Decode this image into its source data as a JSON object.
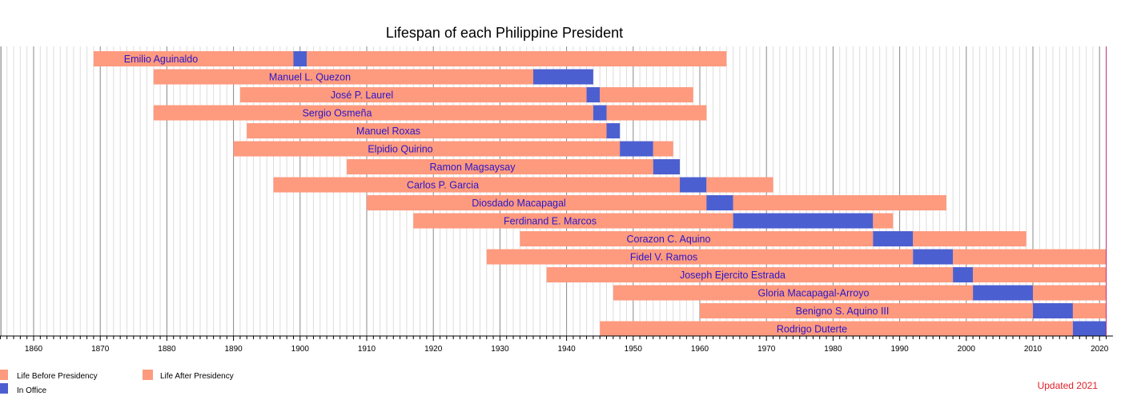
{
  "chart_data": {
    "type": "timeline",
    "title": "Lifespan of each Philippine President",
    "xlim": [
      1855,
      2021.5
    ],
    "x_ticks": [
      1860,
      1870,
      1880,
      1890,
      1900,
      1910,
      1920,
      1930,
      1940,
      1950,
      1960,
      1970,
      1980,
      1990,
      2000,
      2010,
      2020
    ],
    "series_colors": {
      "before": "#fe9a7e",
      "office": "#4c5fd0",
      "after": "#fe9a7e"
    },
    "label_color": "#2a16c8",
    "note_color": "#e0202a",
    "legend": {
      "placement": "bottom-left",
      "items": [
        "Life Before Presidency",
        "Life After Presidency",
        "In Office"
      ]
    },
    "note": "Updated 2021",
    "presidents": [
      {
        "name": "Emilio Aguinaldo",
        "born": 1869,
        "office_start": 1899,
        "office_end": 1901,
        "end": 1964
      },
      {
        "name": "Manuel L. Quezon",
        "born": 1878,
        "office_start": 1935,
        "office_end": 1944,
        "end": 1944
      },
      {
        "name": "José P. Laurel",
        "born": 1891,
        "office_start": 1943,
        "office_end": 1945,
        "end": 1959
      },
      {
        "name": "Sergio Osmeña",
        "born": 1878,
        "office_start": 1944,
        "office_end": 1946,
        "end": 1961
      },
      {
        "name": "Manuel Roxas",
        "born": 1892,
        "office_start": 1946,
        "office_end": 1948,
        "end": 1948
      },
      {
        "name": "Elpidio Quirino",
        "born": 1890,
        "office_start": 1948,
        "office_end": 1953,
        "end": 1956
      },
      {
        "name": "Ramon Magsaysay",
        "born": 1907,
        "office_start": 1953,
        "office_end": 1957,
        "end": 1957
      },
      {
        "name": "Carlos P. Garcia",
        "born": 1896,
        "office_start": 1957,
        "office_end": 1961,
        "end": 1971
      },
      {
        "name": "Diosdado Macapagal",
        "born": 1910,
        "office_start": 1961,
        "office_end": 1965,
        "end": 1997
      },
      {
        "name": "Ferdinand E. Marcos",
        "born": 1917,
        "office_start": 1965,
        "office_end": 1986,
        "end": 1989
      },
      {
        "name": "Corazon C. Aquino",
        "born": 1933,
        "office_start": 1986,
        "office_end": 1992,
        "end": 2009
      },
      {
        "name": "Fidel V. Ramos",
        "born": 1928,
        "office_start": 1992,
        "office_end": 1998,
        "end": 2021
      },
      {
        "name": "Joseph Ejercito Estrada",
        "born": 1937,
        "office_start": 1998,
        "office_end": 2001,
        "end": 2021
      },
      {
        "name": "Gloria Macapagal-Arroyo",
        "born": 1947,
        "office_start": 2001,
        "office_end": 2010,
        "end": 2021
      },
      {
        "name": "Benigno S. Aquino III",
        "born": 1960,
        "office_start": 2010,
        "office_end": 2016,
        "end": 2021
      },
      {
        "name": "Rodrigo Duterte",
        "born": 1945,
        "office_start": 2016,
        "office_end": 2021,
        "end": 2021
      }
    ]
  }
}
